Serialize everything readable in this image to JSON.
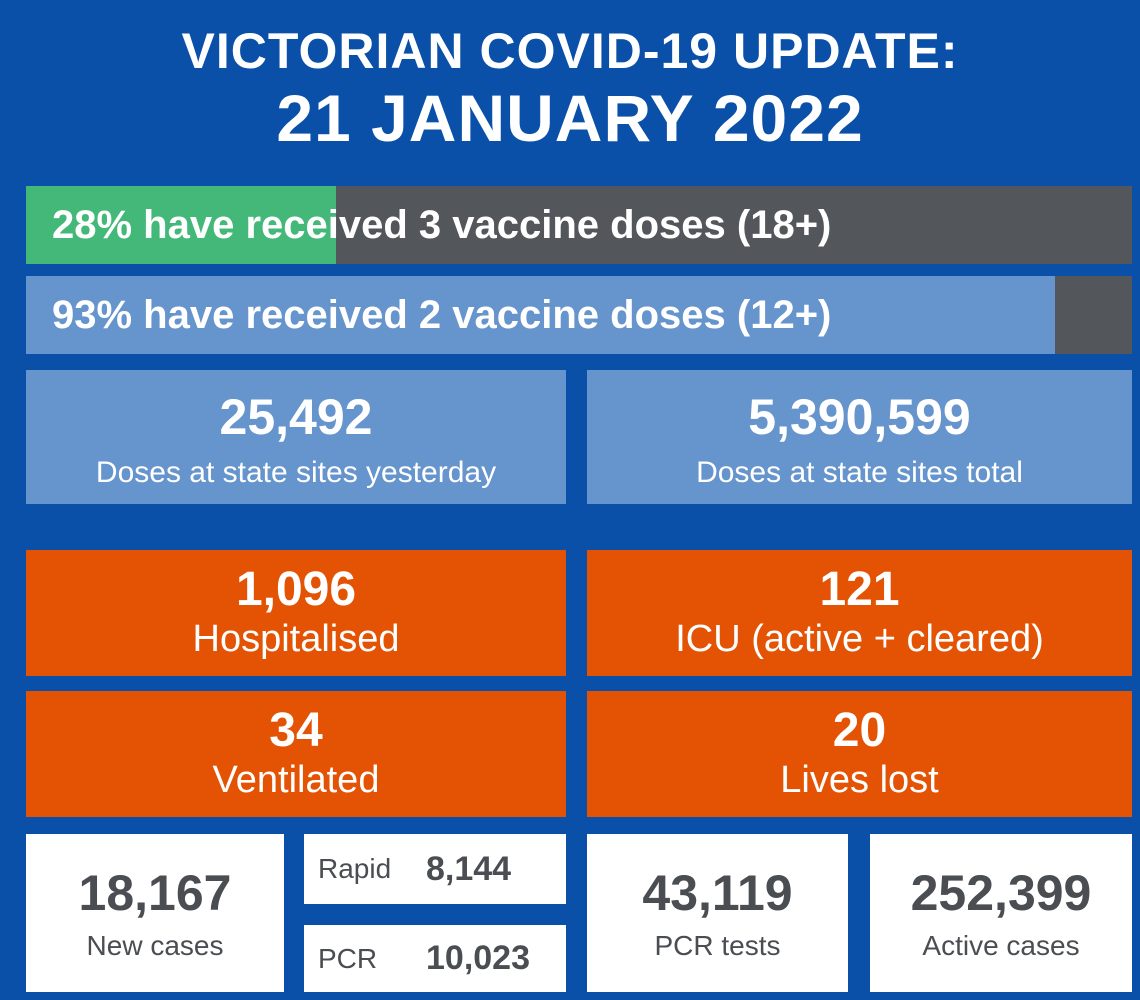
{
  "header": {
    "title": "VICTORIAN COVID-19 UPDATE:",
    "date": "21 JANUARY 2022"
  },
  "vaccination": {
    "three_doses": {
      "text": "28% have received 3 vaccine doses (18+)",
      "percent": 28
    },
    "two_doses": {
      "text": "93% have received 2 vaccine doses (12+)",
      "percent": 93
    }
  },
  "doses": {
    "yesterday": {
      "value": "25,492",
      "label": "Doses at state sites yesterday"
    },
    "total": {
      "value": "5,390,599",
      "label": "Doses at state sites total"
    }
  },
  "hospital": {
    "hospitalised": {
      "value": "1,096",
      "label": "Hospitalised"
    },
    "icu": {
      "value": "121",
      "label": "ICU (active + cleared)"
    },
    "ventilated": {
      "value": "34",
      "label": "Ventilated"
    },
    "lives_lost": {
      "value": "20",
      "label": "Lives lost"
    }
  },
  "cases": {
    "new_cases": {
      "value": "18,167",
      "label": "New cases"
    },
    "rapid": {
      "label": "Rapid",
      "value": "8,144"
    },
    "pcr": {
      "label": "PCR",
      "value": "10,023"
    },
    "pcr_tests": {
      "value": "43,119",
      "label": "PCR tests"
    },
    "active_cases": {
      "value": "252,399",
      "label": "Active cases"
    }
  },
  "colors": {
    "background": "#0a4fa8",
    "three_dose_fill": "#43b878",
    "two_dose_fill": "#6694cc",
    "bar_track": "#53565b",
    "hospital_orange": "#e45304",
    "dose_panel": "#6694cc"
  }
}
